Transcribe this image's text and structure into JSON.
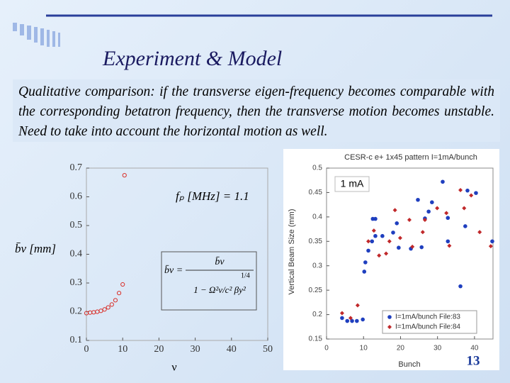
{
  "slide": {
    "title": "Experiment & Model",
    "text": "Qualitative comparison: if the transverse eigen-frequency becomes comparable with the corresponding betatron frequency, then the transverse motion becomes unstable. Need to take into account the horizontal motion as well.",
    "page_number": "13"
  },
  "chart_data": [
    {
      "type": "scatter",
      "x_label": "ν",
      "y_label": "b̄ν [mm]",
      "annotations": [
        "fₚ [MHz] = 1.1",
        "b̄ν =",
        "b̄ν",
        "1 − Ω²ν/c² βy²",
        "1/4"
      ],
      "x": [
        0,
        1,
        2,
        3,
        4,
        5,
        6,
        7,
        8,
        9,
        10,
        10.5
      ],
      "values": [
        0.195,
        0.197,
        0.198,
        0.2,
        0.203,
        0.208,
        0.215,
        0.225,
        0.24,
        0.265,
        0.295,
        0.675
      ],
      "color": "#d9302a",
      "xlim": [
        0,
        50
      ],
      "xticks": [
        0,
        10,
        20,
        30,
        40,
        50
      ],
      "ylim": [
        0.1,
        0.7
      ],
      "yticks": [
        0.1,
        0.2,
        0.3,
        0.4,
        0.5,
        0.6,
        0.7
      ]
    },
    {
      "type": "scatter",
      "title": "CESR-c e+ 1x45 pattern I=1mA/bunch",
      "x_label": "Bunch",
      "y_label": "Vertical Beam Size (mm)",
      "annotations": [
        "1 mA"
      ],
      "legend": "lower right",
      "xlim": [
        0,
        45
      ],
      "xticks": [
        0,
        10,
        20,
        30,
        40
      ],
      "ylim": [
        0.15,
        0.5
      ],
      "yticks": [
        0.15,
        0.2,
        0.25,
        0.3,
        0.35,
        0.4,
        0.45,
        0.5
      ],
      "series": [
        {
          "name": "I=1mA/bunch File:83",
          "color": "#1f3fbf",
          "x": [
            4.2,
            5.6,
            6.9,
            8.2,
            9.8,
            10.2,
            10.5,
            11.3,
            12.3,
            12.5,
            13.2,
            13.2,
            15.1,
            18,
            19,
            19.5,
            22.8,
            24.7,
            25.7,
            26.6,
            27.6,
            28.5,
            31.4,
            32.8,
            32.8,
            36.2,
            37.5,
            38.1,
            40.4,
            44.8
          ],
          "values": [
            0.193,
            0.187,
            0.187,
            0.187,
            0.19,
            0.288,
            0.307,
            0.331,
            0.35,
            0.396,
            0.361,
            0.396,
            0.361,
            0.368,
            0.387,
            0.337,
            0.335,
            0.435,
            0.338,
            0.397,
            0.411,
            0.43,
            0.472,
            0.398,
            0.35,
            0.258,
            0.381,
            0.454,
            0.449,
            0.35
          ]
        },
        {
          "name": "I=1mA/bunch File:84",
          "color": "#c0282a",
          "x": [
            4.2,
            6.5,
            8.4,
            11.3,
            12.8,
            14.2,
            16.1,
            17,
            18.5,
            19.9,
            22.4,
            23.2,
            26,
            26.6,
            29.9,
            32.4,
            33.2,
            36.2,
            37.2,
            39.1,
            41.4,
            44.4
          ],
          "values": [
            0.203,
            0.193,
            0.219,
            0.35,
            0.372,
            0.321,
            0.325,
            0.35,
            0.414,
            0.357,
            0.394,
            0.339,
            0.369,
            0.394,
            0.418,
            0.408,
            0.341,
            0.455,
            0.418,
            0.444,
            0.369,
            0.34
          ]
        }
      ]
    }
  ]
}
